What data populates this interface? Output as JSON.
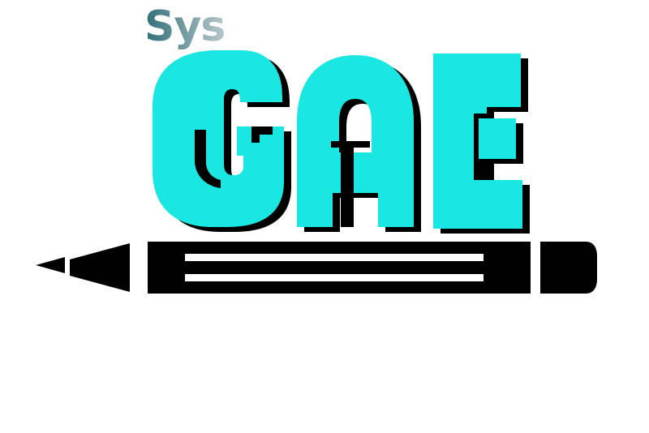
{
  "logo": {
    "prefix": "Sys",
    "wordmark": "GAE",
    "colors": {
      "prefix_gradient_start": "#2f6f78",
      "prefix_gradient_end": "#b9c7cb",
      "wordmark_fill": "#1ae6e2",
      "wordmark_shadow": "#000000",
      "pencil": "#000000",
      "background": "#ffffff"
    },
    "icon": "pencil-icon"
  }
}
